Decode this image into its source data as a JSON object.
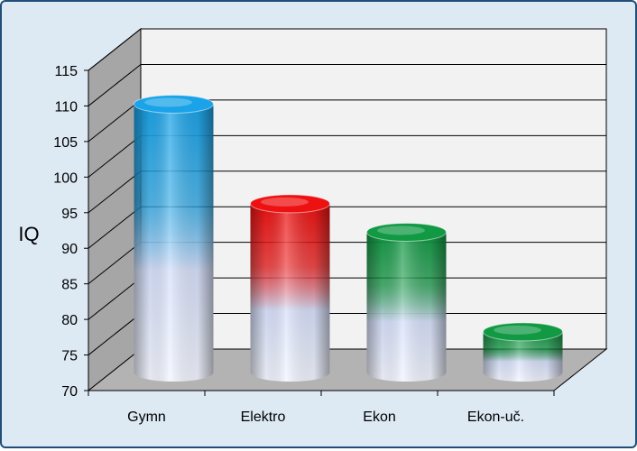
{
  "chart_data": {
    "type": "bar",
    "style": "3d-cylinder",
    "categories": [
      "Gymn",
      "Elektro",
      "Ekon",
      "Ekon-uč."
    ],
    "values": [
      110,
      96,
      92,
      78
    ],
    "ylabel": "IQ",
    "xlabel": "",
    "title": "",
    "ylim": [
      70,
      115
    ],
    "yticks": [
      70,
      75,
      80,
      85,
      90,
      95,
      100,
      105,
      110,
      115
    ],
    "grid": true,
    "legend": "none",
    "colors": [
      "#1aa3e8",
      "#ee1111",
      "#119944",
      "#119944"
    ],
    "base_color": "#ffffff",
    "wall_color": "#f2f2f2",
    "side_wall_color": "#a6a6a6",
    "floor_color": "#b3b3b3",
    "background_color": "#dde9f3"
  }
}
